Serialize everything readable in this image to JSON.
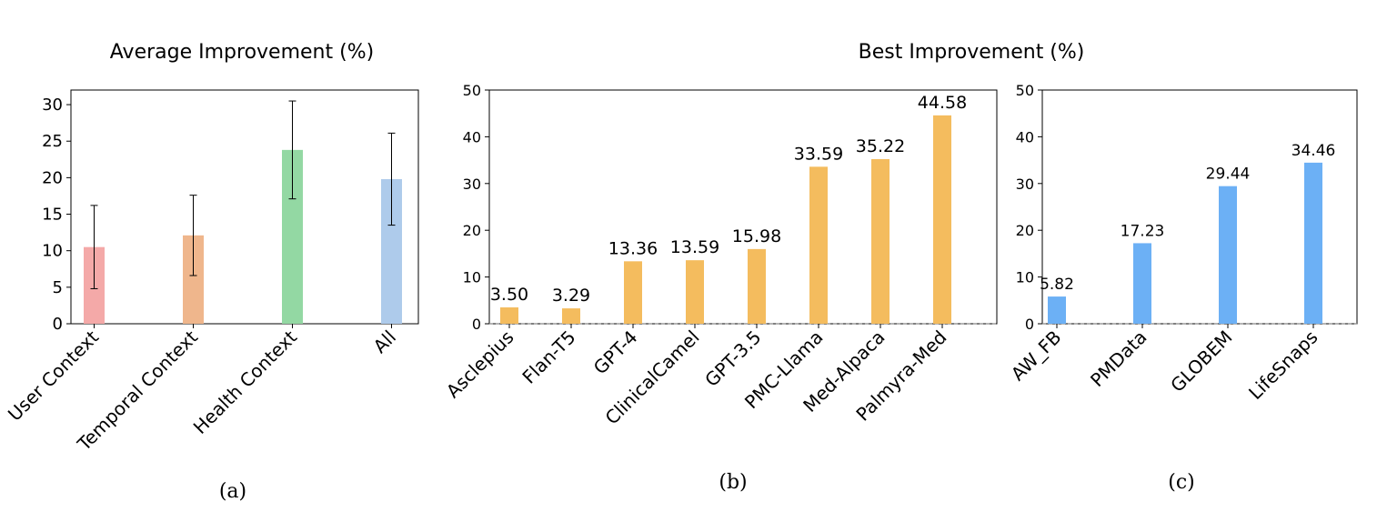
{
  "chart_data": [
    {
      "type": "bar",
      "title": "Average Improvement (%)",
      "caption": "(a)",
      "categories": [
        "User Context",
        "Temporal Context",
        "Health Context",
        "All"
      ],
      "values": [
        10.5,
        12.1,
        23.8,
        19.8
      ],
      "errors": [
        5.7,
        5.5,
        6.7,
        6.3
      ],
      "colors": [
        "#f4a9a8",
        "#efb68c",
        "#93d8a3",
        "#aecbeb"
      ],
      "ylim": [
        0,
        32
      ],
      "yticks": [
        0,
        5,
        10,
        15,
        20,
        25,
        30
      ]
    },
    {
      "type": "bar",
      "caption": "(b)",
      "categories": [
        "Asclepius",
        "Flan-T5",
        "GPT-4",
        "ClinicalCamel",
        "GPT-3.5",
        "PMC-Llama",
        "Med-Alpaca",
        "Palmyra-Med"
      ],
      "values": [
        3.5,
        3.29,
        13.36,
        13.59,
        15.98,
        33.59,
        35.22,
        44.58
      ],
      "value_labels": [
        "3.50",
        "3.29",
        "13.36",
        "13.59",
        "15.98",
        "33.59",
        "35.22",
        "44.58"
      ],
      "color": "#f4bc5e",
      "ylim": [
        0,
        50
      ],
      "yticks": [
        0,
        10,
        20,
        30,
        40,
        50
      ],
      "baseline": "dashed gray line at 0"
    },
    {
      "type": "bar",
      "caption": "(c)",
      "categories": [
        "AW_FB",
        "PMData",
        "GLOBEM",
        "LifeSnaps"
      ],
      "values": [
        5.82,
        17.23,
        29.44,
        34.46
      ],
      "value_labels": [
        "5.82",
        "17.23",
        "29.44",
        "34.46"
      ],
      "color": "#6cb0f5",
      "ylim": [
        0,
        50
      ],
      "yticks": [
        0,
        10,
        20,
        30,
        40,
        50
      ],
      "baseline": "dashed gray line at 0"
    }
  ],
  "shared_title": "Best Improvement (%)"
}
